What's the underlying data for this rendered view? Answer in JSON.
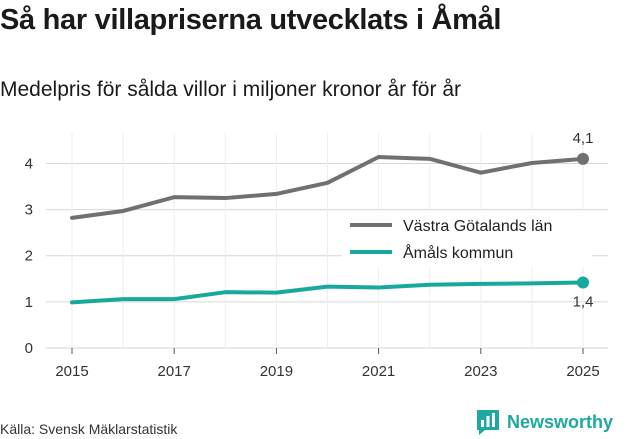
{
  "header": {
    "title": "Så har villapriserna utvecklats i Åmål",
    "subtitle": "Medelpris för sålda villor i miljoner kronor år för år"
  },
  "footer": {
    "source": "Källa: Svensk Mäklarstatistik",
    "brand": "Newsworthy"
  },
  "colors": {
    "series1": "#707070",
    "series2": "#17a99e",
    "grid": "#d6d6d6"
  },
  "chart_data": {
    "type": "line",
    "title": "Så har villapriserna utvecklats i Åmål",
    "xlabel": "",
    "ylabel": "",
    "x": [
      2015,
      2016,
      2017,
      2018,
      2019,
      2020,
      2021,
      2022,
      2023,
      2024,
      2025
    ],
    "x_ticks": [
      "2015",
      "2017",
      "2019",
      "2021",
      "2023",
      "2025"
    ],
    "y_ticks": [
      "0",
      "1",
      "2",
      "3",
      "4"
    ],
    "xlim": [
      2015,
      2025
    ],
    "ylim": [
      0,
      4.4
    ],
    "grid": true,
    "legend_position": "middle-right",
    "series": [
      {
        "name": "Västra Götalands län",
        "values": [
          2.82,
          2.97,
          3.27,
          3.25,
          3.34,
          3.58,
          4.14,
          4.1,
          3.8,
          4.01,
          4.1
        ],
        "end_label": "4,1",
        "color": "#707070"
      },
      {
        "name": "Åmåls kommun",
        "values": [
          0.99,
          1.06,
          1.06,
          1.21,
          1.2,
          1.33,
          1.31,
          1.37,
          1.39,
          1.4,
          1.42
        ],
        "end_label": "1,4",
        "color": "#17a99e"
      }
    ]
  }
}
